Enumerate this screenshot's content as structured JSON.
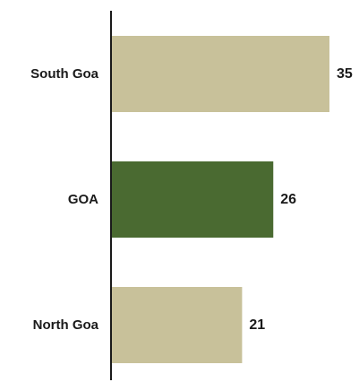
{
  "chart_data": {
    "type": "bar",
    "orientation": "horizontal",
    "categories": [
      "South Goa",
      "GOA",
      "North Goa"
    ],
    "values": [
      35,
      26,
      21
    ],
    "colors": [
      "#c8c19a",
      "#4a6a31",
      "#c8c19a"
    ],
    "axis_color": "#1a1a1a",
    "xlim": [
      0,
      40
    ],
    "grid": false,
    "legend": "none"
  }
}
